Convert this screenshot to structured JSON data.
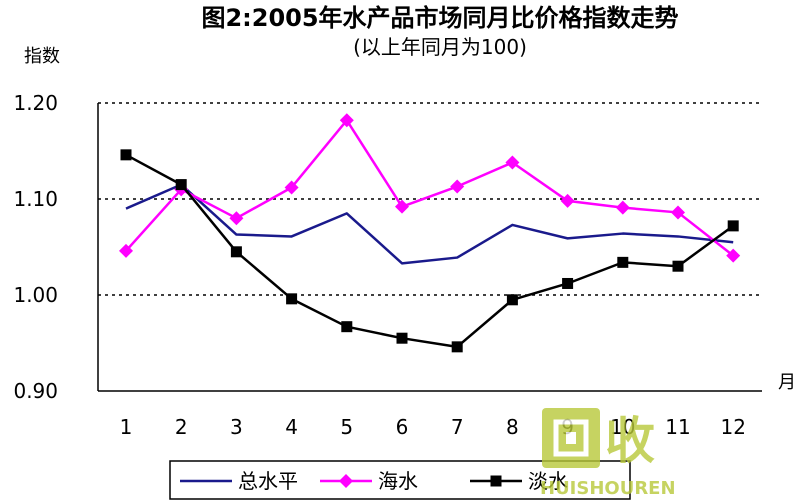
{
  "chart_data": {
    "type": "line",
    "title": "图2:2005年水产品市场同月比价格指数走势",
    "subtitle": "(以上年同月为100)",
    "ylabel": "指数",
    "xlabel": "月",
    "categories": [
      "1",
      "2",
      "3",
      "4",
      "5",
      "6",
      "7",
      "8",
      "9",
      "10",
      "11",
      "12"
    ],
    "ylim": [
      0.9,
      1.2
    ],
    "yticks": [
      "1.20",
      "1.10",
      "1.00",
      "0.90"
    ],
    "grid": "dotted horizontal",
    "series": [
      {
        "name": "总水平",
        "color": "#1a1a8c",
        "marker": "none",
        "values": [
          1.09,
          1.115,
          1.063,
          1.061,
          1.085,
          1.033,
          1.039,
          1.073,
          1.059,
          1.064,
          1.061,
          1.055
        ]
      },
      {
        "name": "海水",
        "color": "#ff00ff",
        "marker": "diamond",
        "values": [
          1.046,
          1.11,
          1.08,
          1.112,
          1.182,
          1.092,
          1.113,
          1.138,
          1.098,
          1.091,
          1.086,
          1.041
        ]
      },
      {
        "name": "淡水",
        "color": "#000000",
        "marker": "square",
        "values": [
          1.146,
          1.115,
          1.045,
          0.996,
          0.967,
          0.955,
          0.946,
          0.995,
          1.012,
          1.034,
          1.03,
          1.072
        ]
      }
    ],
    "legend_position": "bottom"
  },
  "watermark": {
    "text_main": "回收",
    "text_sub": "HUISHOUREN"
  }
}
